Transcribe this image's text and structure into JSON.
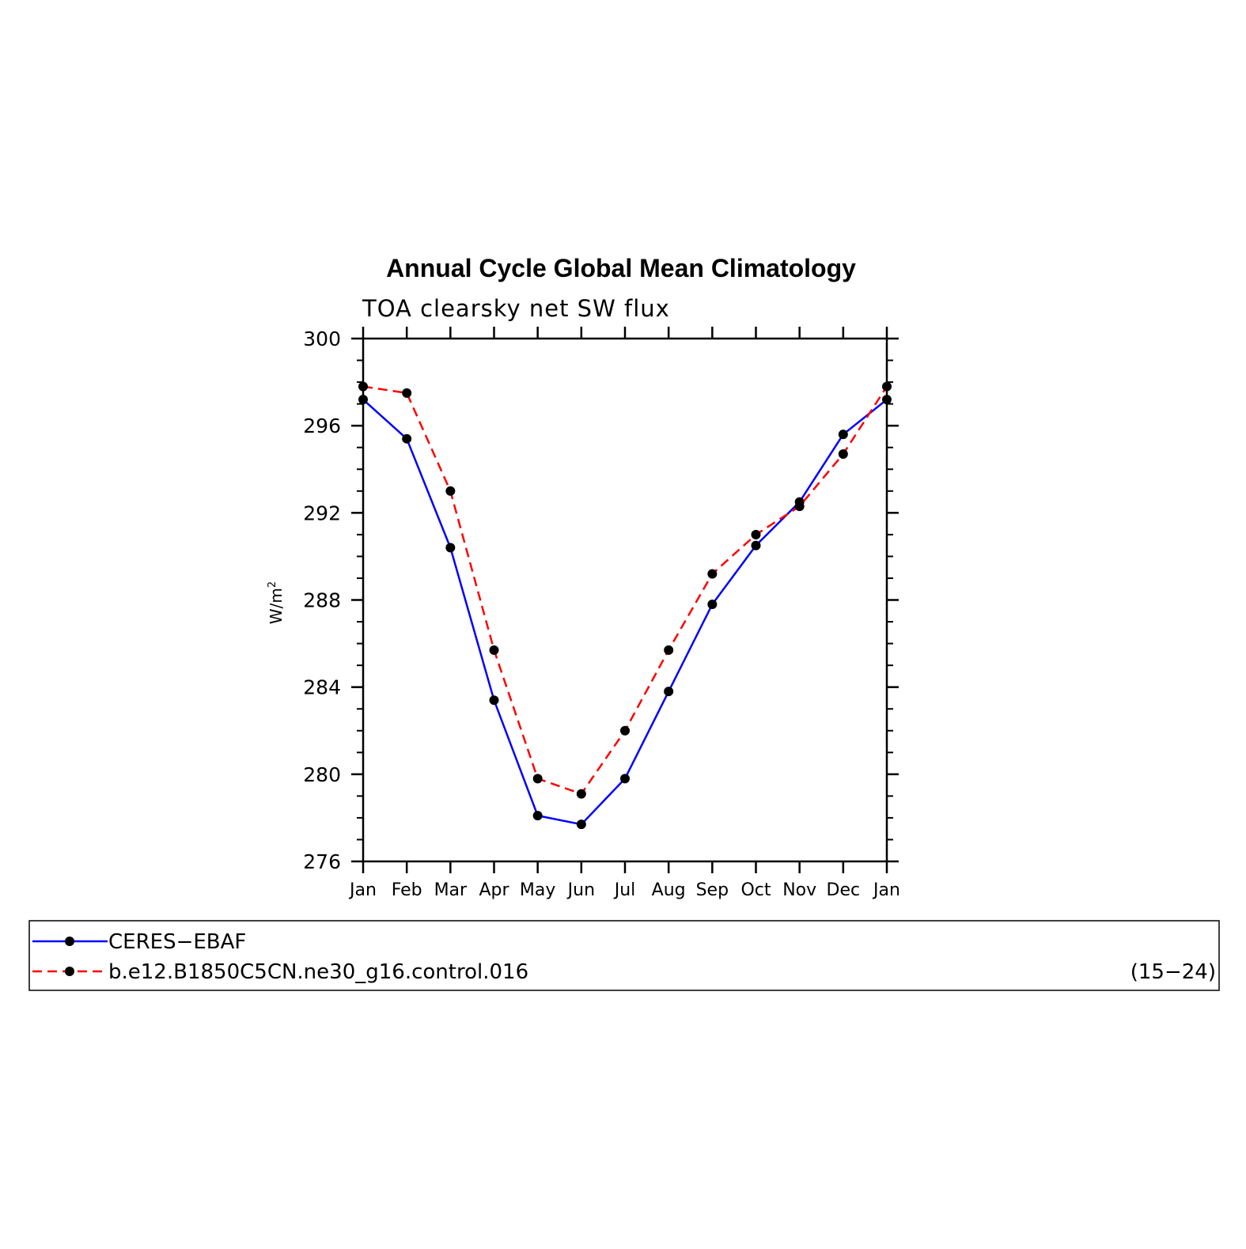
{
  "chart_data": {
    "type": "line",
    "title": "Annual Cycle Global Mean Climatology",
    "subtitle": "TOA clearsky net SW flux",
    "ylabel": "W/m",
    "ylabel_superscript": "2",
    "ylim": [
      276,
      300
    ],
    "yticks": [
      276,
      280,
      284,
      288,
      292,
      296,
      300
    ],
    "categories": [
      "Jan",
      "Feb",
      "Mar",
      "Apr",
      "May",
      "Jun",
      "Jul",
      "Aug",
      "Sep",
      "Oct",
      "Nov",
      "Dec",
      "Jan"
    ],
    "series": [
      {
        "name": "CERES−EBAF",
        "color": "#0000ff",
        "dash": "solid",
        "values": [
          297.2,
          295.4,
          290.4,
          283.4,
          278.1,
          277.7,
          279.8,
          283.8,
          287.8,
          290.5,
          292.5,
          295.6,
          297.2
        ]
      },
      {
        "name": "b.e12.B1850C5CN.ne30_g16.control.016",
        "color": "#ff0000",
        "dash": "dashed",
        "values": [
          297.8,
          297.5,
          293.0,
          285.7,
          279.8,
          279.1,
          282.0,
          285.7,
          289.2,
          291.0,
          292.3,
          294.7,
          297.8
        ]
      }
    ],
    "legend": {
      "position": "bottom",
      "note": "(15−24)"
    }
  }
}
